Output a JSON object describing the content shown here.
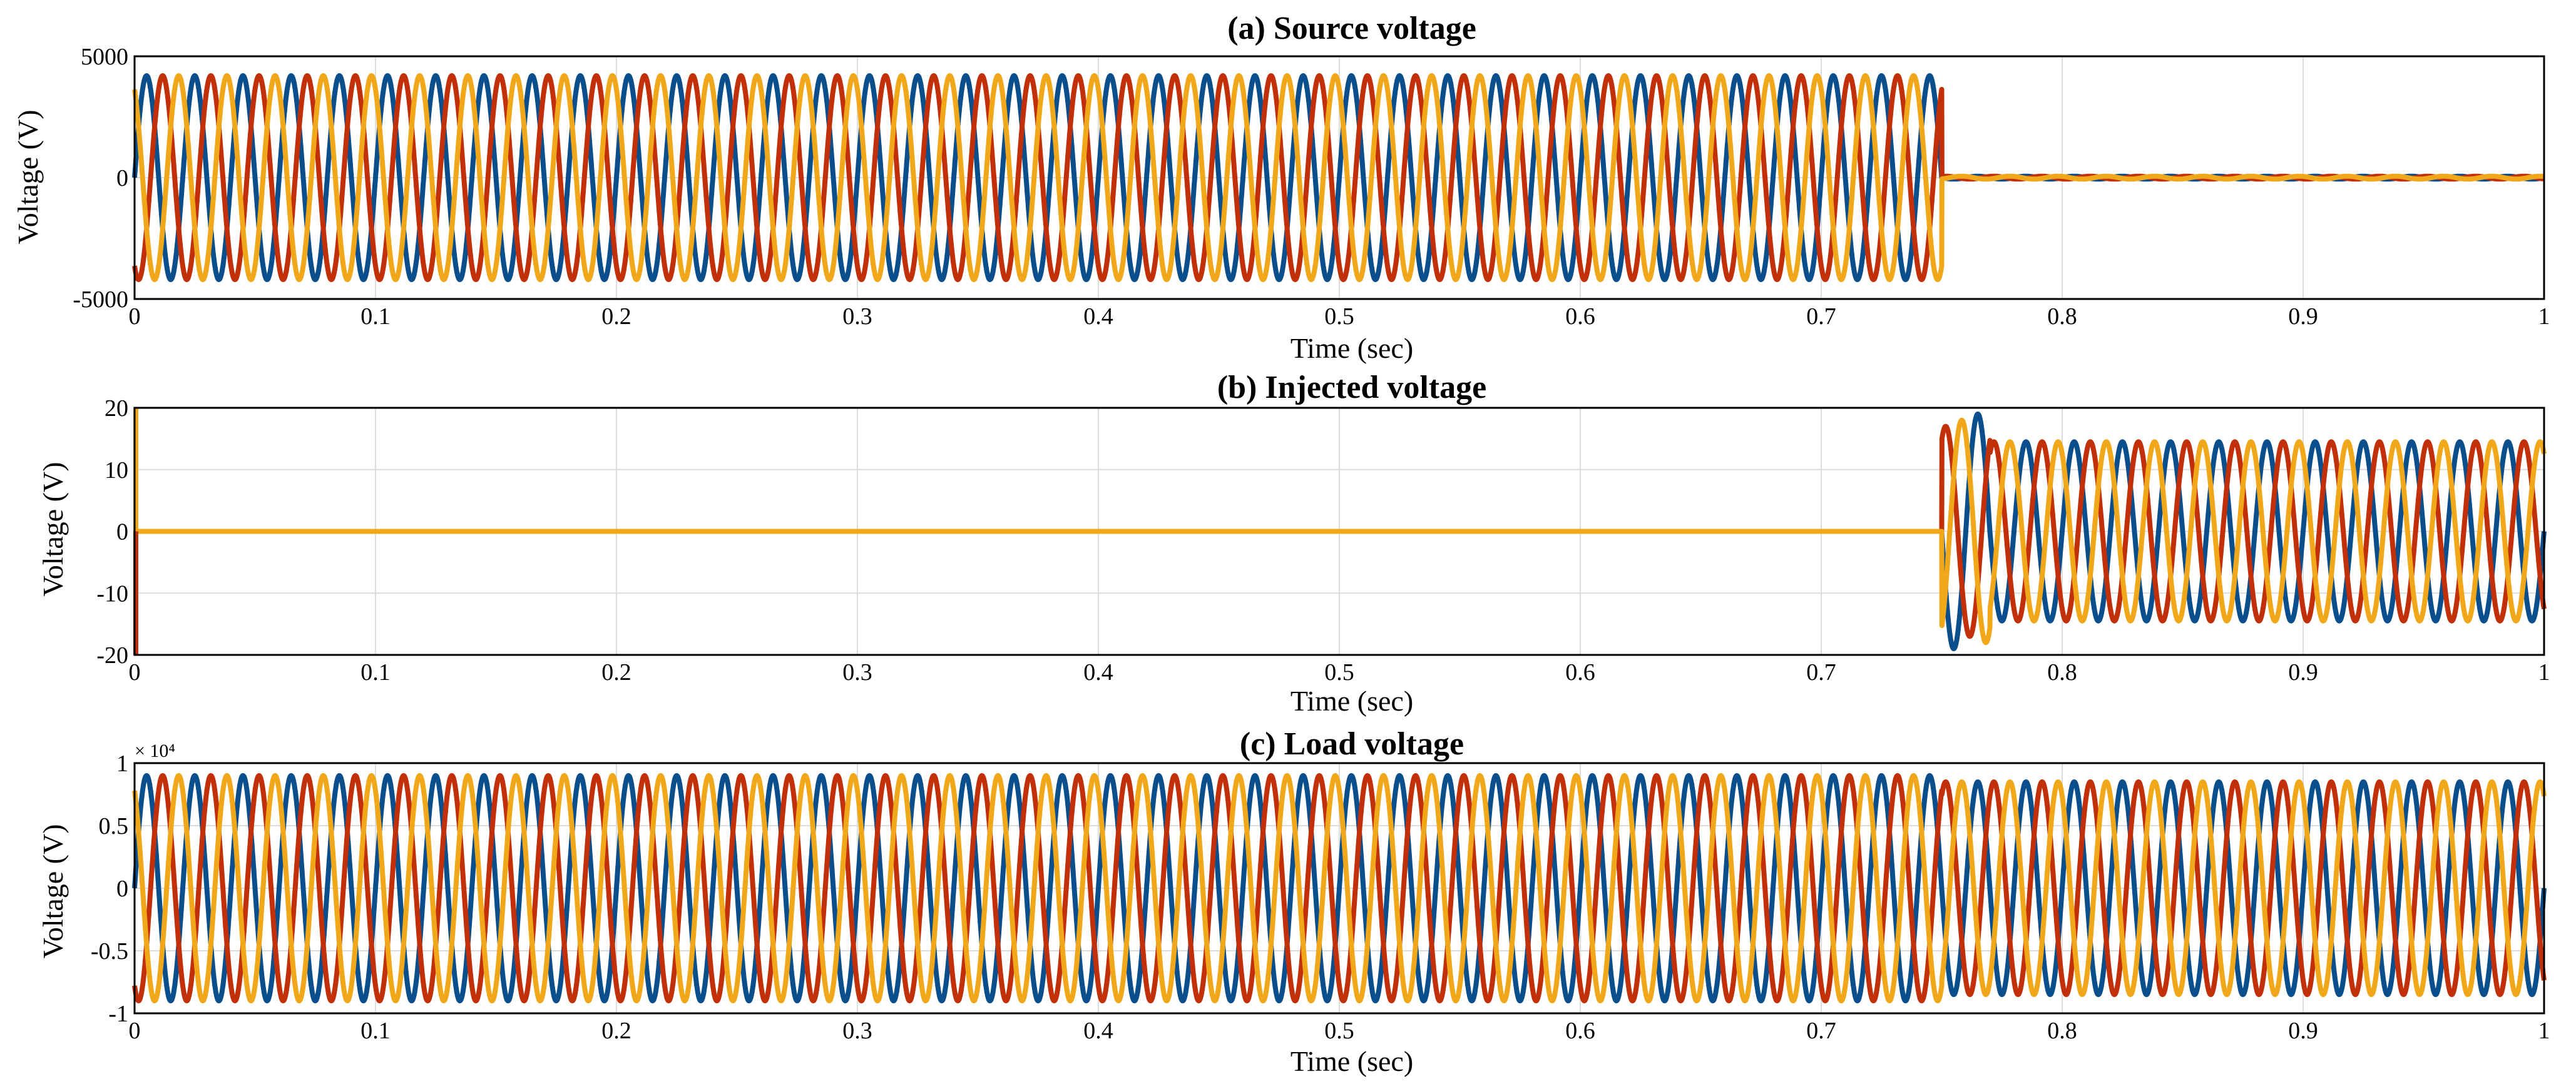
{
  "figure": {
    "colors": {
      "phase_a": "#0a4f8c",
      "phase_b": "#c2300a",
      "phase_c": "#f0a81a",
      "grid": "#dcdcdc",
      "axes": "#000000"
    }
  },
  "chart_data": [
    {
      "type": "line",
      "title": "(a) Source voltage",
      "xlabel": "Time (sec)",
      "ylabel": "Voltage (V)",
      "xlim": [
        0,
        1
      ],
      "ylim": [
        -5000,
        5000
      ],
      "xticks": [
        "0",
        "0.1",
        "0.2",
        "0.3",
        "0.4",
        "0.5",
        "0.6",
        "0.7",
        "0.8",
        "0.9",
        "1"
      ],
      "yticks": [
        "5000",
        "0",
        "-5000"
      ],
      "ytick_values": [
        5000,
        0,
        -5000
      ],
      "grid": true,
      "frequency_hz": 50,
      "series": [
        {
          "color": "#0a4f8c",
          "phase_deg": 0,
          "segments": [
            {
              "from": 0,
              "to": 0.75,
              "amplitude": 4200
            },
            {
              "from": 0.75,
              "to": 1.0,
              "amplitude": 60
            }
          ]
        },
        {
          "color": "#c2300a",
          "phase_deg": -120,
          "segments": [
            {
              "from": 0,
              "to": 0.75,
              "amplitude": 4200
            },
            {
              "from": 0.75,
              "to": 1.0,
              "amplitude": 60
            }
          ]
        },
        {
          "color": "#f0a81a",
          "phase_deg": 120,
          "segments": [
            {
              "from": 0,
              "to": 0.75,
              "amplitude": 4200
            },
            {
              "from": 0.75,
              "to": 1.0,
              "amplitude": 60
            }
          ]
        }
      ]
    },
    {
      "type": "line",
      "title": "(b) Injected voltage",
      "xlabel": "Time (sec)",
      "ylabel": "Voltage (V)",
      "xlim": [
        0,
        1
      ],
      "ylim": [
        -20,
        20
      ],
      "xticks": [
        "0",
        "0.1",
        "0.2",
        "0.3",
        "0.4",
        "0.5",
        "0.6",
        "0.7",
        "0.8",
        "0.9",
        "1"
      ],
      "yticks": [
        "20",
        "10",
        "0",
        "-10",
        "-20"
      ],
      "ytick_values": [
        20,
        10,
        0,
        -10,
        -20
      ],
      "grid": true,
      "frequency_hz": 50,
      "initial_spike": [
        -20,
        20
      ],
      "series": [
        {
          "color": "#0a4f8c",
          "phase_deg": 0,
          "segments": [
            {
              "from": 0,
              "to": 0.75,
              "amplitude": 0
            },
            {
              "from": 0.75,
              "to": 0.77,
              "amplitude": 19
            },
            {
              "from": 0.77,
              "to": 1.0,
              "amplitude": 14.5
            }
          ]
        },
        {
          "color": "#c2300a",
          "phase_deg": -120,
          "segments": [
            {
              "from": 0,
              "to": 0.75,
              "amplitude": 0
            },
            {
              "from": 0.75,
              "to": 0.77,
              "amplitude": 17
            },
            {
              "from": 0.77,
              "to": 1.0,
              "amplitude": 14.5
            }
          ]
        },
        {
          "color": "#f0a81a",
          "phase_deg": 120,
          "segments": [
            {
              "from": 0,
              "to": 0.75,
              "amplitude": 0
            },
            {
              "from": 0.75,
              "to": 0.77,
              "amplitude": 18
            },
            {
              "from": 0.77,
              "to": 1.0,
              "amplitude": 14.5
            }
          ]
        }
      ]
    },
    {
      "type": "line",
      "title": "(c) Load voltage",
      "xlabel": "Time (sec)",
      "ylabel": "Voltage (V)",
      "xlim": [
        0,
        1
      ],
      "ylim": [
        -10000,
        10000
      ],
      "exponent_label": "× 10⁴",
      "xticks": [
        "0",
        "0.1",
        "0.2",
        "0.3",
        "0.4",
        "0.5",
        "0.6",
        "0.7",
        "0.8",
        "0.9",
        "1"
      ],
      "yticks": [
        "1",
        "0.5",
        "0",
        "-0.5",
        "-1"
      ],
      "ytick_values": [
        10000,
        5000,
        0,
        -5000,
        -10000
      ],
      "grid": true,
      "frequency_hz": 50,
      "series": [
        {
          "color": "#0a4f8c",
          "phase_deg": 0,
          "segments": [
            {
              "from": 0,
              "to": 0.75,
              "amplitude": 9000
            },
            {
              "from": 0.75,
              "to": 1.0,
              "amplitude": 8500
            }
          ]
        },
        {
          "color": "#c2300a",
          "phase_deg": -120,
          "segments": [
            {
              "from": 0,
              "to": 0.75,
              "amplitude": 9000
            },
            {
              "from": 0.75,
              "to": 1.0,
              "amplitude": 8500
            }
          ]
        },
        {
          "color": "#f0a81a",
          "phase_deg": 120,
          "segments": [
            {
              "from": 0,
              "to": 0.75,
              "amplitude": 9000
            },
            {
              "from": 0.75,
              "to": 1.0,
              "amplitude": 8500
            }
          ]
        }
      ]
    }
  ]
}
